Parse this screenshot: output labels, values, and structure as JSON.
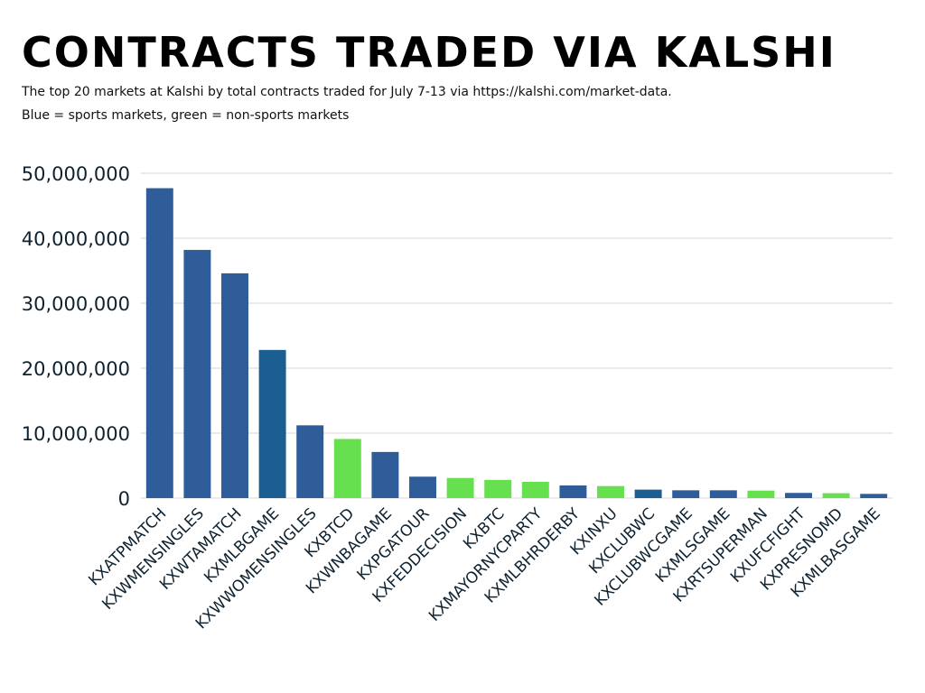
{
  "header": {
    "title": "CONTRACTS TRADED VIA KALSHI",
    "subtitle_line1": "The top 20 markets at Kalshi by total contracts traded for July 7-13 via https://kalshi.com/market-data.",
    "subtitle_line2": "Blue = sports markets, green = non-sports markets"
  },
  "colors": {
    "sports": "#2e5d99",
    "sports_alt": "#1b5e92",
    "non_sports": "#66e04f",
    "grid": "#d6d6d6",
    "text": "#0f2230"
  },
  "chart_data": {
    "type": "bar",
    "title": "CONTRACTS TRADED VIA KALSHI",
    "xlabel": "",
    "ylabel": "",
    "ylim": [
      0,
      50000000
    ],
    "yticks": [
      0,
      10000000,
      20000000,
      30000000,
      40000000,
      50000000
    ],
    "ytick_labels": [
      "0",
      "10,000,000",
      "20,000,000",
      "30,000,000",
      "40,000,000",
      "50,000,000"
    ],
    "grid": true,
    "categories": [
      "KXATPMATCH",
      "KXWMENSINGLES",
      "KXWTAMATCH",
      "KXMLBGAME",
      "KXWWOMENSINGLES",
      "KXBTCD",
      "KXWNBAGAME",
      "KXPGATOUR",
      "KXFEDDECISION",
      "KXBTC",
      "KXMAYORNYCPARTY",
      "KXMLBHRDERBY",
      "KXINXU",
      "KXCLUBWC",
      "KXCLUBWCGAME",
      "KXMLSGAME",
      "KXRTSUPERMAN",
      "KXUFCFIGHT",
      "KXPRESNOMD",
      "KXMLBASGAME"
    ],
    "values": [
      47700000,
      38200000,
      34600000,
      22800000,
      11200000,
      9100000,
      7100000,
      3300000,
      3100000,
      2800000,
      2500000,
      1950000,
      1850000,
      1300000,
      1200000,
      1200000,
      1150000,
      800000,
      750000,
      650000
    ],
    "groups": [
      "sports",
      "sports",
      "sports",
      "sports_alt",
      "sports",
      "non_sports",
      "sports",
      "sports",
      "non_sports",
      "non_sports",
      "non_sports",
      "sports",
      "non_sports",
      "sports_alt",
      "sports",
      "sports",
      "non_sports",
      "sports",
      "non_sports",
      "sports"
    ]
  }
}
